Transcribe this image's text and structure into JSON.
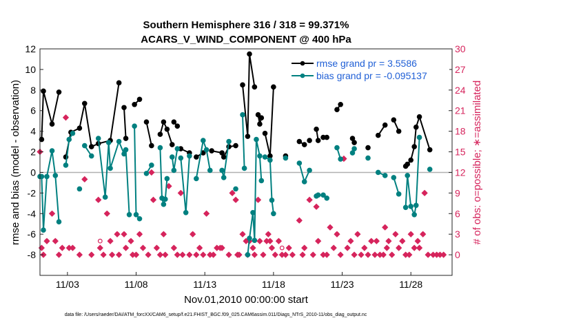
{
  "chart_data": {
    "type": "line",
    "title_line1": "Southern Hemisphere 316 / 318 = 99.371%",
    "title_line2": "ACARS_V_WIND_COMPONENT @ 400 hPa",
    "xlabel": "Nov.01,2010 00:00:00 start",
    "ylabel_left": "rmse and bias (model - observation)",
    "ylabel_right": "# of obs: o=possible; ∗=assimilated",
    "footer": "data file: /Users/raeder/DAI/ATM_forcXX/CAM6_setup/f.e21.FHIST_BGC.f09_025.CAM6assim.011/Diags_NTrS_2010-11/obs_diag_output.nc",
    "x_ticks": [
      {
        "day": 3,
        "label": "11/03"
      },
      {
        "day": 8,
        "label": "11/08"
      },
      {
        "day": 13,
        "label": "11/13"
      },
      {
        "day": 18,
        "label": "11/18"
      },
      {
        "day": 23,
        "label": "11/23"
      },
      {
        "day": 28,
        "label": "11/28"
      }
    ],
    "xlim": [
      1.0,
      31.0
    ],
    "ylim_left": [
      -10,
      12
    ],
    "yticks_left": [
      "12",
      "10",
      "8",
      "6",
      "4",
      "2",
      "0",
      "-2",
      "-4",
      "-6",
      "-8"
    ],
    "ylim_right": [
      -3,
      30
    ],
    "yticks_right": [
      "30",
      "27",
      "24",
      "21",
      "18",
      "15",
      "12",
      "9",
      "6",
      "3",
      "0"
    ],
    "colors": {
      "rmse": "#000000",
      "bias": "#008080",
      "obs": "#d6245c",
      "zero_line": "#b0b0b0",
      "legend_text": "#1f5fd6"
    },
    "legend": [
      {
        "name": "rmse grand pr = 3.5586",
        "color": "#000000"
      },
      {
        "name": "bias grand pr = -0.095137",
        "color": "#008080"
      }
    ],
    "series": [
      {
        "name": "rmse grand pr = 3.5586",
        "values": [
          [
            1.12,
            3.2
          ],
          [
            1.25,
            7.9
          ],
          [
            1.88,
            4.7
          ],
          [
            2.38,
            7.8
          ],
          [
            2.88,
            1.5
          ],
          [
            3.25,
            3.9
          ],
          [
            3.88,
            4.3
          ],
          [
            4.25,
            6.7
          ],
          [
            4.75,
            2.5
          ],
          [
            5.25,
            2.8
          ],
          [
            6.12,
            3.1
          ],
          [
            6.75,
            8.7
          ],
          [
            7.12,
            6.3
          ],
          [
            7.25,
            3.3
          ],
          [
            7.88,
            6.6
          ],
          [
            8.25,
            7.1
          ],
          [
            8.75,
            4.9
          ],
          [
            9.12,
            2.6
          ],
          [
            9.75,
            3.7
          ],
          [
            10.0,
            4.9
          ],
          [
            10.25,
            4.2
          ],
          [
            10.62,
            2.7
          ],
          [
            10.75,
            4.9
          ],
          [
            11.0,
            4.5
          ],
          [
            11.25,
            2.3
          ],
          [
            11.88,
            1.9
          ],
          [
            12.38,
            1.5
          ],
          [
            12.88,
            1.9
          ],
          [
            13.5,
            2.1
          ],
          [
            14.25,
            1.9
          ],
          [
            14.38,
            1.5
          ],
          [
            14.75,
            2.5
          ],
          [
            15.25,
            2.6
          ],
          [
            15.75,
            8.5
          ],
          [
            16.12,
            3.5
          ],
          [
            16.25,
            11.5
          ],
          [
            16.62,
            8.3
          ],
          [
            16.88,
            5.6
          ],
          [
            17.0,
            4.7
          ],
          [
            17.12,
            5.3
          ],
          [
            17.38,
            3.8
          ],
          [
            17.75,
            1.6
          ],
          [
            18.0,
            8.3
          ],
          [
            18.88,
            1.6
          ],
          [
            19.88,
            3.0
          ],
          [
            20.25,
            2.7
          ],
          [
            20.62,
            3.1
          ],
          [
            21.12,
            4.2
          ],
          [
            21.25,
            3.1
          ],
          [
            21.62,
            3.4
          ],
          [
            21.88,
            3.4
          ],
          [
            22.62,
            6.1
          ],
          [
            22.88,
            6.6
          ],
          [
            23.75,
            3.3
          ],
          [
            23.88,
            2.9
          ],
          [
            24.88,
            2.4
          ],
          [
            25.62,
            3.6
          ],
          [
            26.12,
            4.6
          ],
          [
            26.75,
            5.1
          ],
          [
            27.12,
            4.0
          ],
          [
            27.62,
            0.6
          ],
          [
            27.75,
            0.8
          ],
          [
            28.0,
            1.2
          ],
          [
            28.25,
            2.5
          ],
          [
            28.38,
            4.4
          ],
          [
            28.62,
            5.4
          ],
          [
            29.38,
            2.2
          ]
        ],
        "breaks_before": [
          2.88,
          7.12,
          7.88,
          8.75,
          9.75,
          10.75,
          11.25,
          12.38,
          13.5,
          14.38,
          15.75,
          16.88,
          17.38,
          18.88,
          19.88,
          20.62,
          21.12,
          21.62,
          22.62,
          23.75,
          24.88,
          25.62,
          26.75,
          27.62
        ]
      },
      {
        "name": "bias grand pr = -0.095137",
        "values": [
          [
            1.0,
            -0.4
          ],
          [
            1.12,
            -0.4
          ],
          [
            1.25,
            -5.6
          ],
          [
            1.5,
            -0.4
          ],
          [
            1.88,
            2.1
          ],
          [
            2.12,
            -0.3
          ],
          [
            2.38,
            -4.8
          ],
          [
            2.88,
            0.7
          ],
          [
            3.12,
            3.2
          ],
          [
            3.38,
            3.8
          ],
          [
            3.88,
            -1.6
          ],
          [
            4.25,
            2.6
          ],
          [
            4.75,
            1.6
          ],
          [
            5.25,
            3.3
          ],
          [
            5.75,
            -2.4
          ],
          [
            6.0,
            2.9
          ],
          [
            6.12,
            0.4
          ],
          [
            6.75,
            3.0
          ],
          [
            7.12,
            1.8
          ],
          [
            7.25,
            2.2
          ],
          [
            7.5,
            -4.1
          ],
          [
            7.88,
            4.5
          ],
          [
            8.0,
            -4.1
          ],
          [
            8.25,
            -4.5
          ],
          [
            8.75,
            -0.1
          ],
          [
            9.12,
            0.7
          ],
          [
            9.75,
            2.4
          ],
          [
            9.88,
            -2.5
          ],
          [
            10.0,
            -3.1
          ],
          [
            10.12,
            -2.6
          ],
          [
            10.25,
            -0.6
          ],
          [
            10.62,
            1.5
          ],
          [
            10.75,
            0.2
          ],
          [
            11.0,
            2.3
          ],
          [
            11.25,
            1.4
          ],
          [
            11.62,
            -3.9
          ],
          [
            11.88,
            1.6
          ],
          [
            12.38,
            -0.6
          ],
          [
            12.88,
            3.1
          ],
          [
            13.12,
            2.2
          ],
          [
            13.38,
            0.2
          ],
          [
            14.25,
            0.2
          ],
          [
            14.38,
            -0.5
          ],
          [
            14.75,
            3.0
          ],
          [
            15.25,
            -1.6
          ],
          [
            15.75,
            5.6
          ],
          [
            15.88,
            0.4
          ],
          [
            16.12,
            -8.0
          ],
          [
            16.25,
            -6.4
          ],
          [
            16.5,
            -3.9
          ],
          [
            16.62,
            -6.6
          ],
          [
            16.75,
            3.2
          ],
          [
            17.0,
            1.6
          ],
          [
            17.12,
            -0.8
          ],
          [
            17.38,
            1.5
          ],
          [
            17.75,
            1.2
          ],
          [
            17.88,
            -2.7
          ],
          [
            18.0,
            -4.0
          ],
          [
            18.88,
            1.4
          ],
          [
            19.88,
            0.9
          ],
          [
            20.25,
            -0.9
          ],
          [
            20.62,
            0.2
          ],
          [
            21.12,
            -2.3
          ],
          [
            21.25,
            -2.2
          ],
          [
            21.62,
            -2.2
          ],
          [
            21.88,
            -2.5
          ],
          [
            22.62,
            2.4
          ],
          [
            22.88,
            1.3
          ],
          [
            23.75,
            1.9
          ],
          [
            23.88,
            2.3
          ],
          [
            24.88,
            1.4
          ],
          [
            25.62,
            0.0
          ],
          [
            26.12,
            -0.3
          ],
          [
            26.75,
            -0.5
          ],
          [
            27.12,
            -2.1
          ],
          [
            27.62,
            -3.4
          ],
          [
            27.75,
            -0.3
          ],
          [
            28.0,
            -3.3
          ],
          [
            28.25,
            -4.1
          ],
          [
            28.38,
            -3.2
          ],
          [
            28.62,
            3.4
          ],
          [
            29.38,
            0.3
          ]
        ],
        "breaks_before": [
          2.88,
          3.88,
          4.25,
          5.25,
          7.88,
          8.75,
          9.75,
          10.62,
          11.25,
          12.38,
          14.25,
          15.25,
          15.75,
          16.12,
          17.38,
          18.88,
          19.88,
          21.12,
          21.62,
          22.62,
          23.75,
          24.88,
          25.62,
          26.75,
          27.62,
          29.38
        ]
      }
    ],
    "obs_assimilated": [
      [
        1.0,
        15
      ],
      [
        1.12,
        1
      ],
      [
        1.25,
        0
      ],
      [
        1.5,
        2
      ],
      [
        1.88,
        6
      ],
      [
        2.12,
        2
      ],
      [
        2.38,
        0
      ],
      [
        2.62,
        1
      ],
      [
        2.88,
        20
      ],
      [
        3.12,
        1
      ],
      [
        3.38,
        1
      ],
      [
        3.88,
        0
      ],
      [
        4.25,
        11
      ],
      [
        4.75,
        0
      ],
      [
        5.25,
        8
      ],
      [
        5.38,
        1
      ],
      [
        5.62,
        0
      ],
      [
        5.88,
        6
      ],
      [
        6.12,
        2
      ],
      [
        6.25,
        0
      ],
      [
        6.62,
        3
      ],
      [
        6.75,
        0
      ],
      [
        7.12,
        3
      ],
      [
        7.25,
        1
      ],
      [
        7.62,
        2
      ],
      [
        7.75,
        0
      ],
      [
        8.0,
        0
      ],
      [
        8.25,
        3
      ],
      [
        8.5,
        1
      ],
      [
        8.88,
        0
      ],
      [
        9.12,
        12
      ],
      [
        9.25,
        8
      ],
      [
        9.5,
        1
      ],
      [
        9.75,
        0
      ],
      [
        10.0,
        3
      ],
      [
        10.12,
        0
      ],
      [
        10.38,
        10
      ],
      [
        10.75,
        1
      ],
      [
        11.0,
        0
      ],
      [
        11.25,
        9
      ],
      [
        11.38,
        0
      ],
      [
        11.88,
        0
      ],
      [
        12.12,
        3
      ],
      [
        12.38,
        0
      ],
      [
        12.62,
        1
      ],
      [
        12.88,
        0
      ],
      [
        13.12,
        6
      ],
      [
        13.38,
        0
      ],
      [
        13.62,
        0
      ],
      [
        13.88,
        1
      ],
      [
        14.12,
        1
      ],
      [
        14.25,
        1
      ],
      [
        14.75,
        0
      ],
      [
        15.0,
        9
      ],
      [
        15.25,
        8
      ],
      [
        15.38,
        0
      ],
      [
        15.5,
        0
      ],
      [
        15.75,
        3
      ],
      [
        16.0,
        2
      ],
      [
        16.12,
        0
      ],
      [
        16.25,
        2
      ],
      [
        16.5,
        1
      ],
      [
        16.62,
        0
      ],
      [
        16.88,
        8
      ],
      [
        17.0,
        2
      ],
      [
        17.25,
        0
      ],
      [
        17.5,
        2
      ],
      [
        17.62,
        3
      ],
      [
        17.75,
        2
      ],
      [
        17.88,
        1
      ],
      [
        18.12,
        0
      ],
      [
        18.38,
        2
      ],
      [
        18.62,
        0
      ],
      [
        18.88,
        0
      ],
      [
        19.12,
        1
      ],
      [
        19.38,
        0
      ],
      [
        19.88,
        5
      ],
      [
        20.12,
        0
      ],
      [
        20.25,
        1
      ],
      [
        20.62,
        8
      ],
      [
        20.88,
        0
      ],
      [
        21.12,
        7
      ],
      [
        21.25,
        2
      ],
      [
        21.62,
        0
      ],
      [
        21.88,
        0
      ],
      [
        22.12,
        4
      ],
      [
        22.38,
        1
      ],
      [
        22.62,
        3
      ],
      [
        22.88,
        0
      ],
      [
        23.12,
        14
      ],
      [
        23.38,
        1
      ],
      [
        23.62,
        2
      ],
      [
        23.88,
        0
      ],
      [
        24.12,
        3
      ],
      [
        24.38,
        0
      ],
      [
        24.62,
        1
      ],
      [
        24.88,
        0
      ],
      [
        25.12,
        2
      ],
      [
        25.38,
        0
      ],
      [
        25.5,
        2
      ],
      [
        25.75,
        0
      ],
      [
        26.0,
        0
      ],
      [
        26.12,
        4
      ],
      [
        26.25,
        1
      ],
      [
        26.38,
        2
      ],
      [
        26.62,
        0
      ],
      [
        26.88,
        3
      ],
      [
        27.12,
        1
      ],
      [
        27.38,
        2
      ],
      [
        27.62,
        0
      ],
      [
        27.88,
        0
      ],
      [
        28.0,
        3
      ],
      [
        28.25,
        1
      ],
      [
        28.5,
        2
      ],
      [
        28.62,
        1
      ],
      [
        28.88,
        3
      ],
      [
        29.0,
        9
      ],
      [
        29.25,
        0
      ],
      [
        29.62,
        0
      ],
      [
        29.88,
        0
      ],
      [
        30.12,
        0
      ],
      [
        30.38,
        0
      ]
    ],
    "obs_possible": [
      [
        5.38,
        2
      ],
      [
        18.62,
        1
      ]
    ]
  }
}
